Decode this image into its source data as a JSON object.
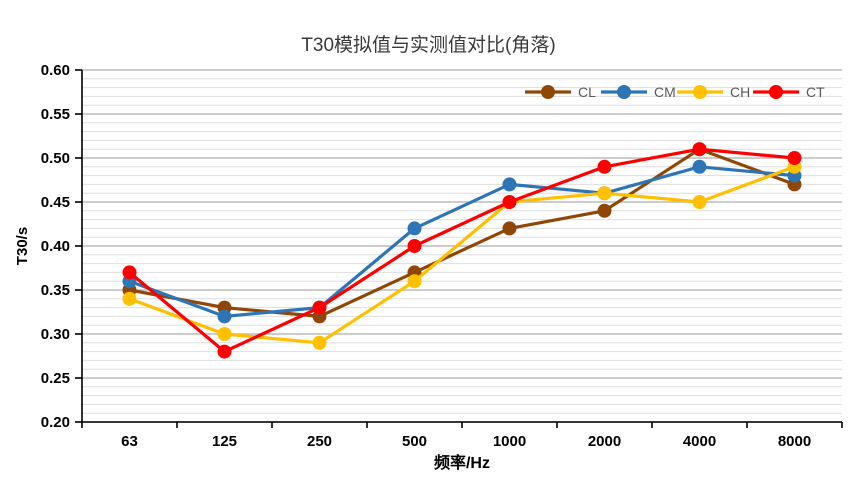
{
  "chart_data": {
    "type": "line",
    "title": "T30模拟值与实测值对比(角落)",
    "xlabel": "频率/Hz",
    "ylabel": "T30/s",
    "categories": [
      "63",
      "125",
      "250",
      "500",
      "1000",
      "2000",
      "4000",
      "8000"
    ],
    "series": [
      {
        "name": "CL",
        "color": "#8F4708",
        "values": [
          0.35,
          0.33,
          0.32,
          0.37,
          0.42,
          0.44,
          0.51,
          0.47
        ]
      },
      {
        "name": "CM",
        "color": "#2E75B6",
        "values": [
          0.36,
          0.32,
          0.33,
          0.42,
          0.47,
          0.46,
          0.49,
          0.48
        ]
      },
      {
        "name": "CH",
        "color": "#FFC000",
        "values": [
          0.34,
          0.3,
          0.29,
          0.36,
          0.45,
          0.46,
          0.45,
          0.49
        ]
      },
      {
        "name": "CT",
        "color": "#FF0000",
        "values": [
          0.37,
          0.28,
          0.33,
          0.4,
          0.45,
          0.49,
          0.51,
          0.5
        ]
      }
    ],
    "ylim": [
      0.2,
      0.6
    ],
    "ytick_step": 0.05,
    "minor_grid_step": 0.01,
    "ytick_labels": [
      "0.20",
      "0.25",
      "0.30",
      "0.35",
      "0.40",
      "0.45",
      "0.50",
      "0.55",
      "0.60"
    ],
    "legend": {
      "position": "top-inside",
      "entries": [
        "CL",
        "CM",
        "CH",
        "CT"
      ]
    },
    "grid": "horizontal-major-minor",
    "marker": "circle"
  },
  "palette": {
    "background": "#FFFFFF",
    "grid_major": "#BBBBBB",
    "grid_minor": "#DEDEDE",
    "axis": "#000000",
    "tick_text": "#000000",
    "legend_text": "#595959",
    "title_text": "#3A3A3A"
  }
}
